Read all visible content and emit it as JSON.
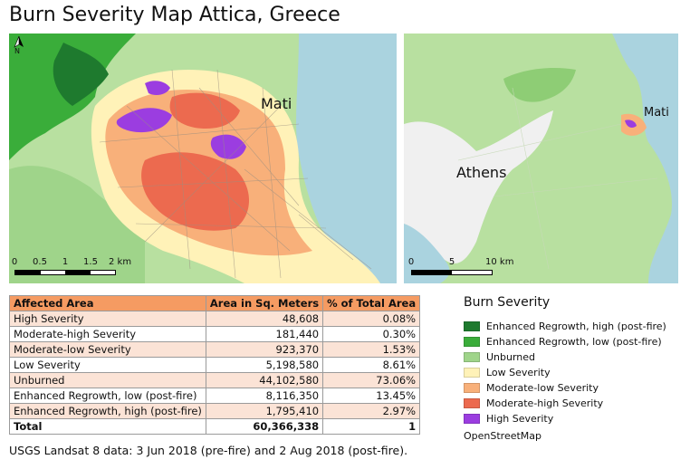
{
  "title": "Burn Severity Map Attica, Greece",
  "colors": {
    "enhanced_high": "#1e7a2e",
    "enhanced_low": "#3aad3a",
    "unburned": "#9fd48a",
    "low": "#fff2b8",
    "moderate_low": "#f8b07a",
    "moderate_high": "#ec6a4f",
    "high": "#9b3de0",
    "sea": "#aad3df",
    "land": "#b8e0a0",
    "urban": "#f0f0f0",
    "table_header": "#f59b62",
    "table_stripe": "#fbe3d6"
  },
  "main_map": {
    "north_label": "N",
    "place_label": "Mati",
    "scale": {
      "ticks": [
        "0",
        "0.5",
        "1",
        "1.5",
        "2 km"
      ]
    }
  },
  "overview_map": {
    "labels": {
      "athens": "Athens",
      "mati": "Mati"
    },
    "scale": {
      "ticks": [
        "0",
        "5",
        "10 km"
      ]
    }
  },
  "table": {
    "headers": [
      "Affected Area",
      "Area in Sq. Meters",
      "% of Total Area"
    ],
    "rows": [
      {
        "area": "High Severity",
        "sqm": "48,608",
        "pct": "0.08%"
      },
      {
        "area": "Moderate-high Severity",
        "sqm": "181,440",
        "pct": "0.30%"
      },
      {
        "area": "Moderate-low Severity",
        "sqm": "923,370",
        "pct": "1.53%"
      },
      {
        "area": "Low Severity",
        "sqm": "5,198,580",
        "pct": "8.61%"
      },
      {
        "area": "Unburned",
        "sqm": "44,102,580",
        "pct": "73.06%"
      },
      {
        "area": "Enhanced Regrowth, low (post-fire)",
        "sqm": "8,116,350",
        "pct": "13.45%"
      },
      {
        "area": "Enhanced Regrowth, high (post-fire)",
        "sqm": "1,795,410",
        "pct": "2.97%"
      }
    ],
    "total": {
      "area": "Total",
      "sqm": "60,366,338",
      "pct": "1"
    }
  },
  "legend": {
    "title": "Burn Severity",
    "items": [
      {
        "label": "Enhanced Regrowth, high (post-fire)",
        "color": "#1e7a2e"
      },
      {
        "label": "Enhanced Regrowth, low (post-fire)",
        "color": "#3aad3a"
      },
      {
        "label": "Unburned",
        "color": "#9fd48a"
      },
      {
        "label": "Low Severity",
        "color": "#fff2b8"
      },
      {
        "label": "Moderate-low Severity",
        "color": "#f8b07a"
      },
      {
        "label": "Moderate-high Severity",
        "color": "#ec6a4f"
      },
      {
        "label": "High Severity",
        "color": "#9b3de0"
      }
    ],
    "basemap": "OpenStreetMap"
  },
  "source": "USGS Landsat 8 data: 3 Jun 2018 (pre-fire) and 2 Aug 2018 (post-fire)."
}
